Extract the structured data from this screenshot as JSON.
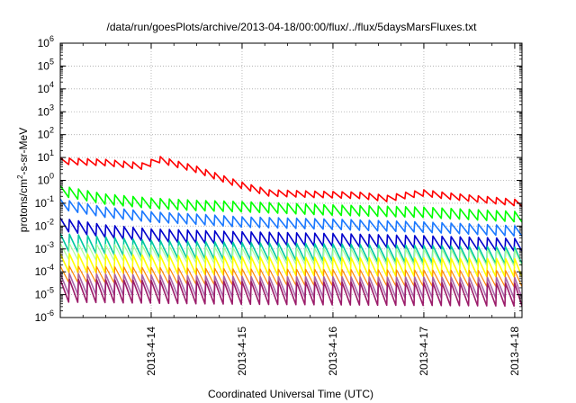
{
  "chart_data": {
    "type": "line",
    "title": "/data/run/goesPlots/archive/2013-04-18/00:00/flux/../flux/5daysMarsFluxes.txt",
    "xlabel": "Coordinated Universal Time (UTC)",
    "ylabel": "protons/cm²-s-sr-MeV",
    "ylabel_parts": {
      "pre": "protons/cm",
      "sup": "2",
      "post": "-s-sr-MeV"
    },
    "xlim": [
      0,
      5.08
    ],
    "ylim_log10": [
      -6,
      6
    ],
    "log_y": true,
    "grid": true,
    "legend": "none",
    "x_ticks": [
      {
        "x": 1,
        "label": "2013-4-14"
      },
      {
        "x": 2,
        "label": "2013-4-15"
      },
      {
        "x": 3,
        "label": "2013-4-16"
      },
      {
        "x": 4,
        "label": "2013-4-17"
      },
      {
        "x": 5,
        "label": "2013-4-18"
      }
    ],
    "y_ticks": [
      {
        "exp": -6,
        "base": "10",
        "sup": "-6"
      },
      {
        "exp": -5,
        "base": "10",
        "sup": "-5"
      },
      {
        "exp": -4,
        "base": "10",
        "sup": "-4"
      },
      {
        "exp": -3,
        "base": "10",
        "sup": "-3"
      },
      {
        "exp": -2,
        "base": "10",
        "sup": "-2"
      },
      {
        "exp": -1,
        "base": "10",
        "sup": "-1"
      },
      {
        "exp": 0,
        "base": "10",
        "sup": "0"
      },
      {
        "exp": 1,
        "base": "10",
        "sup": "1"
      },
      {
        "exp": 2,
        "base": "10",
        "sup": "2"
      },
      {
        "exp": 3,
        "base": "10",
        "sup": "3"
      },
      {
        "exp": 4,
        "base": "10",
        "sup": "4"
      },
      {
        "exp": 5,
        "base": "10",
        "sup": "5"
      },
      {
        "exp": 6,
        "base": "10",
        "sup": "6"
      }
    ],
    "sawtooth_period_days": 0.1,
    "series": [
      {
        "color": "#ff0000",
        "width": 1.6,
        "amplitude_decades": 0.28,
        "trend": [
          [
            0,
            7
          ],
          [
            0.5,
            6
          ],
          [
            0.95,
            4
          ],
          [
            1.05,
            9
          ],
          [
            1.5,
            3
          ],
          [
            2.0,
            0.6
          ],
          [
            2.3,
            0.28
          ],
          [
            2.7,
            0.25
          ],
          [
            3.3,
            0.22
          ],
          [
            3.6,
            0.16
          ],
          [
            3.8,
            0.22
          ],
          [
            4.0,
            0.28
          ],
          [
            4.3,
            0.2
          ],
          [
            4.7,
            0.14
          ],
          [
            5.08,
            0.1
          ]
        ]
      },
      {
        "color": "#00ff00",
        "width": 1.6,
        "amplitude_decades": 0.45,
        "trend": [
          [
            0,
            0.35
          ],
          [
            0.5,
            0.15
          ],
          [
            1.0,
            0.1
          ],
          [
            1.5,
            0.08
          ],
          [
            2.0,
            0.07
          ],
          [
            3.0,
            0.05
          ],
          [
            4.0,
            0.04
          ],
          [
            5.08,
            0.025
          ]
        ]
      },
      {
        "color": "#1a78ff",
        "width": 1.6,
        "amplitude_decades": 0.45,
        "trend": [
          [
            0,
            0.09
          ],
          [
            0.5,
            0.04
          ],
          [
            1.0,
            0.025
          ],
          [
            1.5,
            0.02
          ],
          [
            2.0,
            0.015
          ],
          [
            3.0,
            0.012
          ],
          [
            4.0,
            0.009
          ],
          [
            5.08,
            0.006
          ]
        ]
      },
      {
        "color": "#0000cc",
        "width": 1.6,
        "amplitude_decades": 0.55,
        "trend": [
          [
            0,
            0.012
          ],
          [
            0.5,
            0.006
          ],
          [
            1.0,
            0.004
          ],
          [
            2.0,
            0.003
          ],
          [
            3.0,
            0.0025
          ],
          [
            4.0,
            0.002
          ],
          [
            5.08,
            0.0015
          ]
        ]
      },
      {
        "color": "#00c8a0",
        "width": 1.6,
        "amplitude_decades": 0.75,
        "trend": [
          [
            0,
            0.002
          ],
          [
            1.0,
            0.001
          ],
          [
            2.0,
            0.0008
          ],
          [
            3.0,
            0.0007
          ],
          [
            4.0,
            0.0006
          ],
          [
            5.08,
            0.0005
          ]
        ]
      },
      {
        "color": "#aaff99",
        "width": 1.2,
        "amplitude_decades": 0.7,
        "trend": [
          [
            0,
            0.0008
          ],
          [
            2.0,
            0.0005
          ],
          [
            5.08,
            0.0004
          ]
        ]
      },
      {
        "color": "#ffff00",
        "width": 1.6,
        "amplitude_decades": 0.8,
        "trend": [
          [
            0,
            0.00025
          ],
          [
            2.0,
            0.00018
          ],
          [
            5.08,
            0.00015
          ]
        ]
      },
      {
        "color": "#ff8800",
        "width": 1.2,
        "amplitude_decades": 0.7,
        "trend": [
          [
            0,
            8e-05
          ],
          [
            2.0,
            6e-05
          ],
          [
            5.08,
            5e-05
          ]
        ]
      },
      {
        "color": "#aa66aa",
        "width": 1.6,
        "amplitude_decades": 0.9,
        "trend": [
          [
            0,
            3e-05
          ],
          [
            2.0,
            2.2e-05
          ],
          [
            5.08,
            2e-05
          ]
        ]
      },
      {
        "color": "#9b1c6a",
        "width": 1.6,
        "amplitude_decades": 1.0,
        "trend": [
          [
            0,
            1.5e-05
          ],
          [
            2.0,
            1.2e-05
          ],
          [
            5.08,
            1e-05
          ]
        ]
      }
    ]
  }
}
